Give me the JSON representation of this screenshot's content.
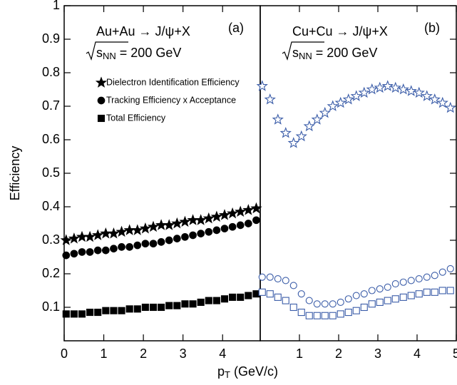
{
  "chart_data": [
    {
      "type": "scatter",
      "panel_label": "(a)",
      "reaction": "Au+Au → J/ψ+X",
      "energy_parts": [
        "s",
        "NN",
        " = 200 GeV"
      ],
      "ylabel": "Efficiency",
      "xlabel_parts": [
        "p",
        "T",
        " (GeV/c)"
      ],
      "x": [
        0.05,
        0.25,
        0.45,
        0.65,
        0.85,
        1.05,
        1.25,
        1.45,
        1.65,
        1.85,
        2.05,
        2.25,
        2.45,
        2.65,
        2.85,
        3.05,
        3.25,
        3.45,
        3.65,
        3.85,
        4.05,
        4.25,
        4.45,
        4.65,
        4.85
      ],
      "xlim": [
        0,
        4.95
      ],
      "xticks": [
        0,
        1,
        2,
        3,
        4
      ],
      "ylim": [
        0,
        1
      ],
      "yticks": [
        0.1,
        0.2,
        0.3,
        0.4,
        0.5,
        0.6,
        0.7,
        0.8,
        0.9,
        1
      ],
      "legend": "upper left",
      "series": [
        {
          "name": "Dielectron Identification Efficiency",
          "color": "#000000",
          "marker": "star",
          "filled": true,
          "values": [
            0.3,
            0.305,
            0.31,
            0.31,
            0.315,
            0.32,
            0.32,
            0.325,
            0.33,
            0.33,
            0.335,
            0.34,
            0.345,
            0.345,
            0.35,
            0.355,
            0.36,
            0.36,
            0.365,
            0.37,
            0.375,
            0.38,
            0.385,
            0.39,
            0.395
          ]
        },
        {
          "name": "Tracking Efficiency x Acceptance",
          "color": "#000000",
          "marker": "circle",
          "filled": true,
          "values": [
            0.255,
            0.26,
            0.265,
            0.265,
            0.27,
            0.27,
            0.275,
            0.28,
            0.28,
            0.285,
            0.29,
            0.29,
            0.295,
            0.3,
            0.305,
            0.31,
            0.315,
            0.32,
            0.325,
            0.33,
            0.335,
            0.34,
            0.345,
            0.35,
            0.36
          ]
        },
        {
          "name": "Total Efficiency",
          "color": "#000000",
          "marker": "square",
          "filled": true,
          "values": [
            0.08,
            0.08,
            0.08,
            0.085,
            0.085,
            0.09,
            0.09,
            0.09,
            0.095,
            0.095,
            0.1,
            0.1,
            0.1,
            0.105,
            0.105,
            0.11,
            0.11,
            0.115,
            0.12,
            0.12,
            0.125,
            0.13,
            0.13,
            0.135,
            0.14
          ]
        }
      ]
    },
    {
      "type": "scatter",
      "panel_label": "(b)",
      "reaction": "Cu+Cu → J/ψ+X",
      "energy_parts": [
        "s",
        "NN",
        " = 200 GeV"
      ],
      "x": [
        0.05,
        0.25,
        0.45,
        0.65,
        0.85,
        1.05,
        1.25,
        1.45,
        1.65,
        1.85,
        2.05,
        2.25,
        2.45,
        2.65,
        2.85,
        3.05,
        3.25,
        3.45,
        3.65,
        3.85,
        4.05,
        4.25,
        4.45,
        4.65,
        4.85
      ],
      "xlim": [
        0,
        5
      ],
      "xticks": [
        1,
        2,
        3,
        4,
        5
      ],
      "ylim": [
        0,
        1
      ],
      "series": [
        {
          "color": "#3a5ca8",
          "marker": "star",
          "filled": false,
          "values": [
            0.76,
            0.72,
            0.66,
            0.62,
            0.59,
            0.61,
            0.64,
            0.66,
            0.68,
            0.7,
            0.71,
            0.72,
            0.73,
            0.74,
            0.75,
            0.755,
            0.76,
            0.755,
            0.75,
            0.745,
            0.74,
            0.73,
            0.72,
            0.71,
            0.695
          ]
        },
        {
          "color": "#3a5ca8",
          "marker": "circle",
          "filled": false,
          "values": [
            0.19,
            0.19,
            0.185,
            0.18,
            0.165,
            0.14,
            0.12,
            0.11,
            0.11,
            0.11,
            0.115,
            0.125,
            0.135,
            0.14,
            0.15,
            0.155,
            0.16,
            0.17,
            0.175,
            0.18,
            0.185,
            0.19,
            0.195,
            0.205,
            0.215
          ]
        },
        {
          "color": "#3a5ca8",
          "marker": "square",
          "filled": false,
          "values": [
            0.145,
            0.14,
            0.13,
            0.12,
            0.1,
            0.085,
            0.075,
            0.075,
            0.075,
            0.075,
            0.08,
            0.085,
            0.09,
            0.1,
            0.11,
            0.115,
            0.12,
            0.125,
            0.13,
            0.135,
            0.14,
            0.145,
            0.145,
            0.15,
            0.15
          ]
        }
      ]
    }
  ]
}
